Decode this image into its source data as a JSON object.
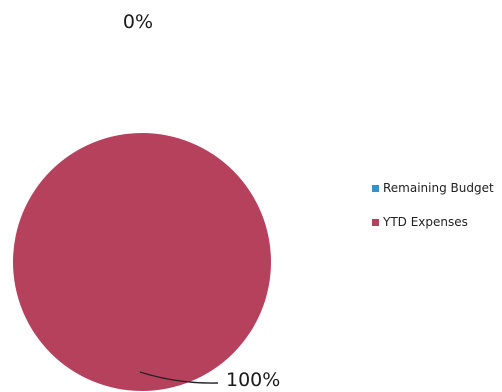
{
  "chart_data": {
    "type": "pie",
    "title": "",
    "slices": [
      {
        "name": "Remaining Budget",
        "value": 0,
        "percent_label": "0%",
        "color": "#3a8fc7"
      },
      {
        "name": "YTD Expenses",
        "value": 100,
        "percent_label": "100%",
        "color": "#b5415d"
      }
    ],
    "legend_position": "right",
    "show_percent_labels": true
  }
}
